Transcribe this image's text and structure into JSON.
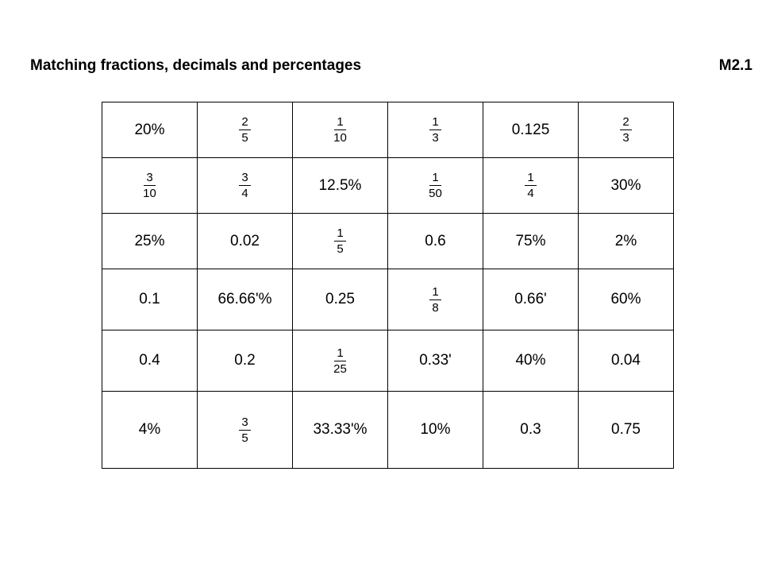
{
  "header": {
    "title": "Matching fractions, decimals and percentages",
    "code": "M2.1"
  },
  "grid": {
    "rows": [
      [
        {
          "type": "text",
          "value": "20%"
        },
        {
          "type": "frac",
          "num": "2",
          "den": "5"
        },
        {
          "type": "frac",
          "num": "1",
          "den": "10"
        },
        {
          "type": "frac",
          "num": "1",
          "den": "3"
        },
        {
          "type": "text",
          "value": "0.125"
        },
        {
          "type": "frac",
          "num": "2",
          "den": "3"
        }
      ],
      [
        {
          "type": "frac",
          "num": "3",
          "den": "10"
        },
        {
          "type": "frac",
          "num": "3",
          "den": "4"
        },
        {
          "type": "text",
          "value": "12.5%"
        },
        {
          "type": "frac",
          "num": "1",
          "den": "50"
        },
        {
          "type": "frac",
          "num": "1",
          "den": "4"
        },
        {
          "type": "text",
          "value": "30%"
        }
      ],
      [
        {
          "type": "text",
          "value": "25%"
        },
        {
          "type": "text",
          "value": "0.02"
        },
        {
          "type": "frac",
          "num": "1",
          "den": "5"
        },
        {
          "type": "text",
          "value": "0.6"
        },
        {
          "type": "text",
          "value": "75%"
        },
        {
          "type": "text",
          "value": "2%"
        }
      ],
      [
        {
          "type": "text",
          "value": "0.1"
        },
        {
          "type": "recur",
          "value": "66.66",
          "suffix": "%"
        },
        {
          "type": "text",
          "value": "0.25"
        },
        {
          "type": "frac",
          "num": "1",
          "den": "8"
        },
        {
          "type": "recur",
          "value": "0.66",
          "suffix": ""
        },
        {
          "type": "text",
          "value": "60%"
        }
      ],
      [
        {
          "type": "text",
          "value": "0.4"
        },
        {
          "type": "text",
          "value": "0.2"
        },
        {
          "type": "frac",
          "num": "1",
          "den": "25"
        },
        {
          "type": "recur",
          "value": "0.33",
          "suffix": ""
        },
        {
          "type": "text",
          "value": "40%"
        },
        {
          "type": "text",
          "value": "0.04"
        }
      ],
      [
        {
          "type": "text",
          "value": "4%"
        },
        {
          "type": "frac",
          "num": "3",
          "den": "5"
        },
        {
          "type": "recur",
          "value": "33.33",
          "suffix": "%"
        },
        {
          "type": "text",
          "value": "10%"
        },
        {
          "type": "text",
          "value": "0.3"
        },
        {
          "type": "text",
          "value": "0.75"
        }
      ]
    ]
  }
}
